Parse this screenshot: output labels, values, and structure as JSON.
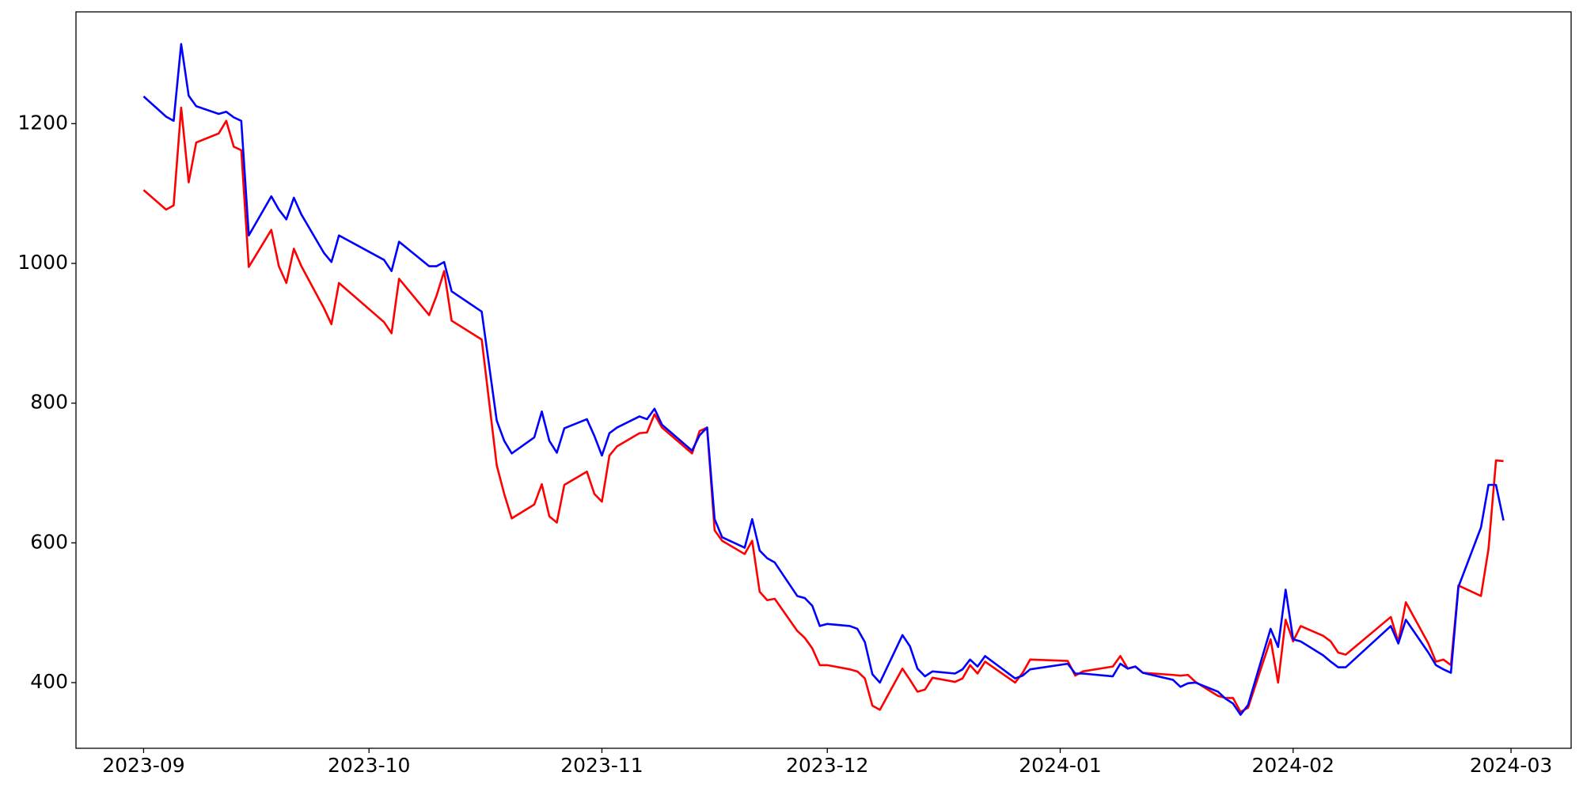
{
  "chart_data": {
    "type": "line",
    "x": [
      "2023-09-01",
      "2023-09-04",
      "2023-09-05",
      "2023-09-06",
      "2023-09-07",
      "2023-09-08",
      "2023-09-11",
      "2023-09-12",
      "2023-09-13",
      "2023-09-14",
      "2023-09-15",
      "2023-09-18",
      "2023-09-19",
      "2023-09-20",
      "2023-09-21",
      "2023-09-22",
      "2023-09-25",
      "2023-09-26",
      "2023-09-27",
      "2023-10-03",
      "2023-10-04",
      "2023-10-05",
      "2023-10-09",
      "2023-10-10",
      "2023-10-11",
      "2023-10-12",
      "2023-10-16",
      "2023-10-18",
      "2023-10-19",
      "2023-10-20",
      "2023-10-23",
      "2023-10-24",
      "2023-10-25",
      "2023-10-26",
      "2023-10-27",
      "2023-10-30",
      "2023-10-31",
      "2023-11-01",
      "2023-11-02",
      "2023-11-03",
      "2023-11-06",
      "2023-11-07",
      "2023-11-08",
      "2023-11-09",
      "2023-11-13",
      "2023-11-14",
      "2023-11-15",
      "2023-11-16",
      "2023-11-17",
      "2023-11-20",
      "2023-11-21",
      "2023-11-22",
      "2023-11-23",
      "2023-11-24",
      "2023-11-27",
      "2023-11-28",
      "2023-11-29",
      "2023-11-30",
      "2023-12-01",
      "2023-12-04",
      "2023-12-05",
      "2023-12-06",
      "2023-12-07",
      "2023-12-08",
      "2023-12-11",
      "2023-12-12",
      "2023-12-13",
      "2023-12-14",
      "2023-12-15",
      "2023-12-18",
      "2023-12-19",
      "2023-12-20",
      "2023-12-21",
      "2023-12-22",
      "2023-12-26",
      "2023-12-27",
      "2023-12-28",
      "2024-01-02",
      "2024-01-03",
      "2024-01-04",
      "2024-01-08",
      "2024-01-09",
      "2024-01-10",
      "2024-01-11",
      "2024-01-12",
      "2024-01-16",
      "2024-01-17",
      "2024-01-18",
      "2024-01-19",
      "2024-01-22",
      "2024-01-23",
      "2024-01-24",
      "2024-01-25",
      "2024-01-26",
      "2024-01-29",
      "2024-01-30",
      "2024-01-31",
      "2024-02-01",
      "2024-02-02",
      "2024-02-05",
      "2024-02-06",
      "2024-02-07",
      "2024-02-08",
      "2024-02-14",
      "2024-02-15",
      "2024-02-16",
      "2024-02-19",
      "2024-02-20",
      "2024-02-21",
      "2024-02-22",
      "2024-02-23",
      "2024-02-26",
      "2024-02-27",
      "2024-02-28",
      "2024-02-29"
    ],
    "series": [
      {
        "color": "red",
        "values": [
          1105,
          1077,
          1083,
          1223,
          1116,
          1173,
          1186,
          1204,
          1167,
          1162,
          995,
          1048,
          996,
          972,
          1021,
          996,
          936,
          913,
          972,
          916,
          900,
          978,
          926,
          954,
          989,
          918,
          891,
          711,
          670,
          635,
          655,
          684,
          638,
          629,
          683,
          702,
          670,
          659,
          725,
          738,
          757,
          758,
          784,
          765,
          728,
          760,
          765,
          618,
          603,
          584,
          603,
          530,
          518,
          520,
          474,
          464,
          449,
          425,
          425,
          419,
          416,
          406,
          367,
          361,
          420,
          404,
          387,
          390,
          407,
          401,
          406,
          425,
          413,
          430,
          400,
          414,
          433,
          431,
          410,
          416,
          423,
          438,
          420,
          423,
          414,
          411,
          410,
          411,
          401,
          381,
          378,
          378,
          358,
          364,
          462,
          400,
          490,
          459,
          481,
          467,
          459,
          443,
          440,
          494,
          458,
          515,
          456,
          430,
          433,
          425,
          539,
          524,
          591,
          718,
          717
        ]
      },
      {
        "color": "blue",
        "values": [
          1239,
          1210,
          1204,
          1314,
          1240,
          1225,
          1214,
          1217,
          1209,
          1204,
          1040,
          1096,
          1077,
          1063,
          1094,
          1070,
          1015,
          1002,
          1040,
          1005,
          989,
          1031,
          996,
          996,
          1002,
          960,
          931,
          775,
          746,
          728,
          751,
          788,
          746,
          729,
          764,
          777,
          753,
          725,
          757,
          765,
          781,
          777,
          792,
          769,
          732,
          754,
          765,
          634,
          608,
          593,
          634,
          589,
          578,
          572,
          524,
          521,
          510,
          481,
          484,
          481,
          477,
          458,
          412,
          400,
          468,
          452,
          420,
          409,
          416,
          413,
          419,
          433,
          423,
          438,
          406,
          410,
          419,
          427,
          413,
          413,
          409,
          427,
          420,
          423,
          414,
          404,
          394,
          399,
          400,
          387,
          377,
          370,
          354,
          368,
          477,
          451,
          533,
          462,
          459,
          439,
          430,
          422,
          422,
          481,
          456,
          490,
          443,
          425,
          419,
          414,
          537,
          622,
          683,
          683,
          632
        ]
      }
    ],
    "xlim": [
      "2023-08-23",
      "2024-03-09"
    ],
    "xticks": [
      {
        "value": "2023-09-01",
        "label": "2023-09"
      },
      {
        "value": "2023-10-01",
        "label": "2023-10"
      },
      {
        "value": "2023-11-01",
        "label": "2023-11"
      },
      {
        "value": "2023-12-01",
        "label": "2023-12"
      },
      {
        "value": "2024-01-01",
        "label": "2024-01"
      },
      {
        "value": "2024-02-01",
        "label": "2024-02"
      },
      {
        "value": "2024-03-01",
        "label": "2024-03"
      }
    ],
    "ylim": [
      306,
      1360
    ],
    "yticks": [
      400,
      600,
      800,
      1000,
      1200
    ]
  }
}
